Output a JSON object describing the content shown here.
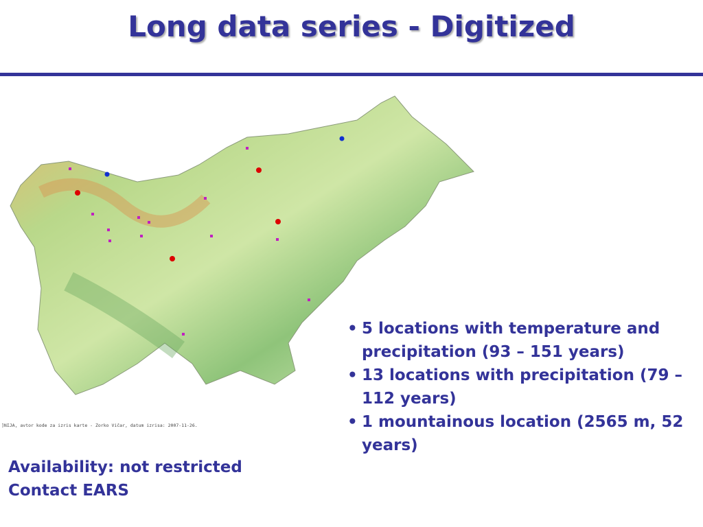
{
  "header": {
    "title": "Long data series - Digitized"
  },
  "map": {
    "credit": "]NIJA, avtor kode za izris karte - Zorko Vičar, datum izrisa: 2007-11-26."
  },
  "bullets": [
    "5 locations with temperature and precipitation (93 – 151 years)",
    "13 locations with precipitation (79 – 112 years)",
    "1 mountainous location (2565 m, 52 years)"
  ],
  "footer": {
    "lines": [
      "Availability: not restricted",
      "Contact EARS"
    ]
  }
}
